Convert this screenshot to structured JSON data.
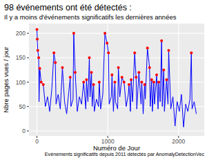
{
  "chart_data": {
    "type": "line",
    "title": "98  événements ont été détectés :",
    "subtitle": "Il y a moins d'événements significatifs les dernières années",
    "x_label": "Numéro de Jour",
    "y_label": "Nbre pages vues / jour",
    "caption": "Evénements significatifs depuis 2011 détectés par AnomalyDetectionVec",
    "xlim": [
      -112,
      2362
    ],
    "xticks": [
      0,
      1000,
      2000
    ],
    "ylim": [
      -10,
      220
    ],
    "yticks": [
      0,
      50,
      100,
      150,
      200
    ],
    "grid": true,
    "series": [
      {
        "type": "line",
        "color": "#0000ff",
        "x": [
          0,
          5,
          12,
          25,
          30,
          40,
          60,
          90,
          120,
          150,
          180,
          210,
          240,
          260,
          270,
          300,
          330,
          360,
          390,
          420,
          450,
          470,
          480,
          510,
          520,
          540,
          570,
          600,
          630,
          660,
          690,
          700,
          720,
          740,
          750,
          770,
          780,
          800,
          810,
          840,
          870,
          880,
          900,
          930,
          960,
          990,
          1010,
          1020,
          1050,
          1060,
          1080,
          1100,
          1110,
          1140,
          1150,
          1170,
          1200,
          1230,
          1260,
          1290,
          1300,
          1320,
          1330,
          1350,
          1380,
          1400,
          1410,
          1440,
          1470,
          1480,
          1500,
          1520,
          1530,
          1560,
          1590,
          1600,
          1620,
          1630,
          1650,
          1660,
          1690,
          1710,
          1720,
          1740,
          1760,
          1770,
          1790,
          1800,
          1830,
          1850,
          1860,
          1890,
          1920,
          1950,
          1980,
          2010,
          2040,
          2070,
          2100,
          2130,
          2160,
          2180,
          2190,
          2220,
          2250
        ],
        "values": [
          208,
          188,
          165,
          150,
          60,
          128,
          100,
          95,
          50,
          70,
          40,
          85,
          160,
          140,
          55,
          75,
          45,
          130,
          60,
          35,
          80,
          110,
          50,
          65,
          200,
          120,
          40,
          70,
          55,
          100,
          45,
          105,
          60,
          150,
          70,
          120,
          50,
          95,
          40,
          65,
          50,
          100,
          45,
          75,
          200,
          180,
          160,
          55,
          70,
          115,
          40,
          100,
          60,
          45,
          130,
          70,
          110,
          100,
          50,
          75,
          95,
          40,
          105,
          60,
          160,
          110,
          45,
          120,
          55,
          100,
          35,
          95,
          65,
          170,
          130,
          50,
          105,
          40,
          100,
          55,
          115,
          45,
          100,
          60,
          185,
          50,
          125,
          40,
          105,
          55,
          165,
          45,
          70,
          10,
          60,
          40,
          75,
          8,
          55,
          40,
          65,
          160,
          45,
          60,
          35
        ]
      },
      {
        "type": "scatter",
        "color": "#ff0000",
        "marker": "circle",
        "x": [
          0,
          5,
          12,
          25,
          40,
          60,
          90,
          240,
          260,
          360,
          470,
          520,
          540,
          660,
          700,
          740,
          770,
          800,
          880,
          960,
          990,
          1010,
          1060,
          1100,
          1150,
          1200,
          1230,
          1300,
          1330,
          1380,
          1400,
          1440,
          1480,
          1520,
          1560,
          1590,
          1620,
          1650,
          1690,
          1720,
          1760,
          1790,
          1830,
          1860,
          2180
        ],
        "values": [
          208,
          188,
          165,
          150,
          128,
          100,
          95,
          160,
          140,
          130,
          110,
          200,
          120,
          100,
          105,
          150,
          120,
          95,
          100,
          200,
          180,
          160,
          115,
          100,
          130,
          110,
          100,
          95,
          105,
          160,
          110,
          120,
          100,
          95,
          170,
          130,
          105,
          100,
          115,
          100,
          185,
          125,
          105,
          165,
          160
        ]
      }
    ]
  }
}
